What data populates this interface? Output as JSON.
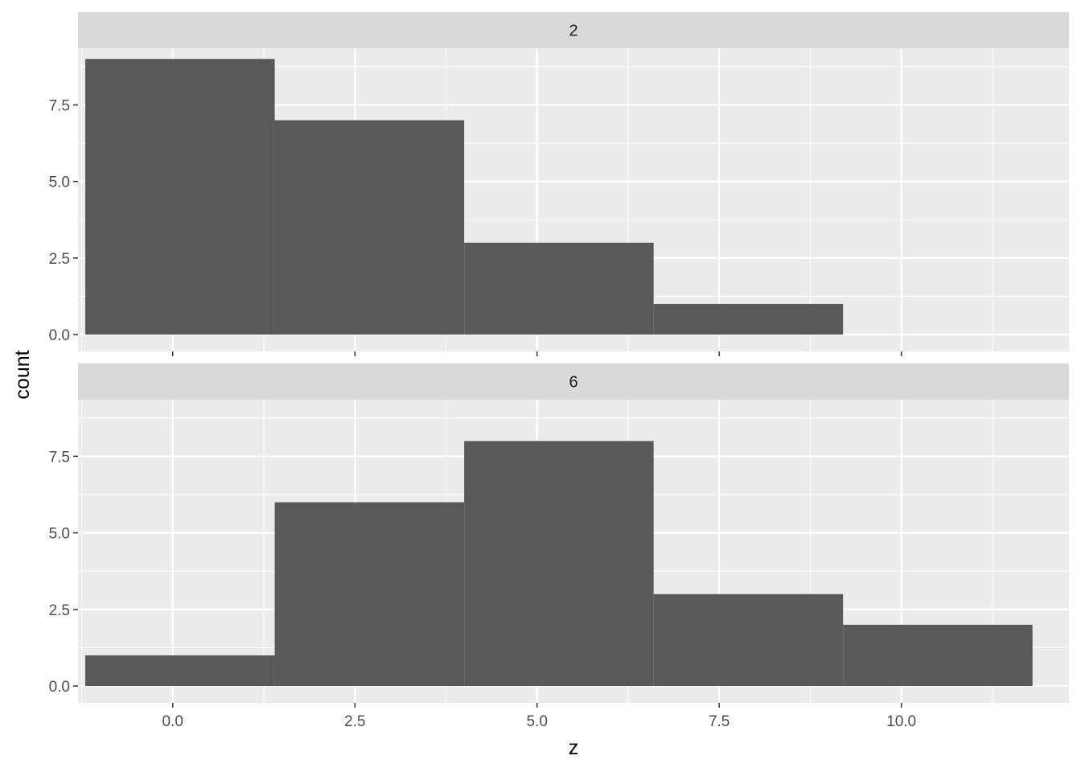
{
  "chart_data": {
    "type": "bar",
    "subtype": "histogram",
    "facet_layout": "vertical",
    "xlabel": "z",
    "ylabel": "count",
    "xlim": [
      -1.3,
      12.3
    ],
    "ylim": [
      -0.55,
      9.35
    ],
    "x_ticks": [
      0.0,
      2.5,
      5.0,
      7.5,
      10.0
    ],
    "x_tick_labels": [
      "0.0",
      "2.5",
      "5.0",
      "7.5",
      "10.0"
    ],
    "y_ticks": [
      0.0,
      2.5,
      5.0,
      7.5
    ],
    "y_tick_labels": [
      "0.0",
      "2.5",
      "5.0",
      "7.5"
    ],
    "grid": true,
    "colors": {
      "panel_bg": "#ebebeb",
      "strip_bg": "#d9d9d9",
      "bar_fill": "#595959",
      "grid": "#ffffff",
      "tick": "#333333"
    },
    "panels": [
      {
        "label": "2",
        "bins": [
          {
            "x0": -1.2,
            "x1": 1.4,
            "count": 9
          },
          {
            "x0": 1.4,
            "x1": 4.0,
            "count": 7
          },
          {
            "x0": 4.0,
            "x1": 6.6,
            "count": 3
          },
          {
            "x0": 6.6,
            "x1": 9.2,
            "count": 1
          }
        ]
      },
      {
        "label": "6",
        "bins": [
          {
            "x0": -1.2,
            "x1": 1.4,
            "count": 1
          },
          {
            "x0": 1.4,
            "x1": 4.0,
            "count": 6
          },
          {
            "x0": 4.0,
            "x1": 6.6,
            "count": 8
          },
          {
            "x0": 6.6,
            "x1": 9.2,
            "count": 3
          },
          {
            "x0": 9.2,
            "x1": 11.8,
            "count": 2
          }
        ]
      }
    ]
  }
}
